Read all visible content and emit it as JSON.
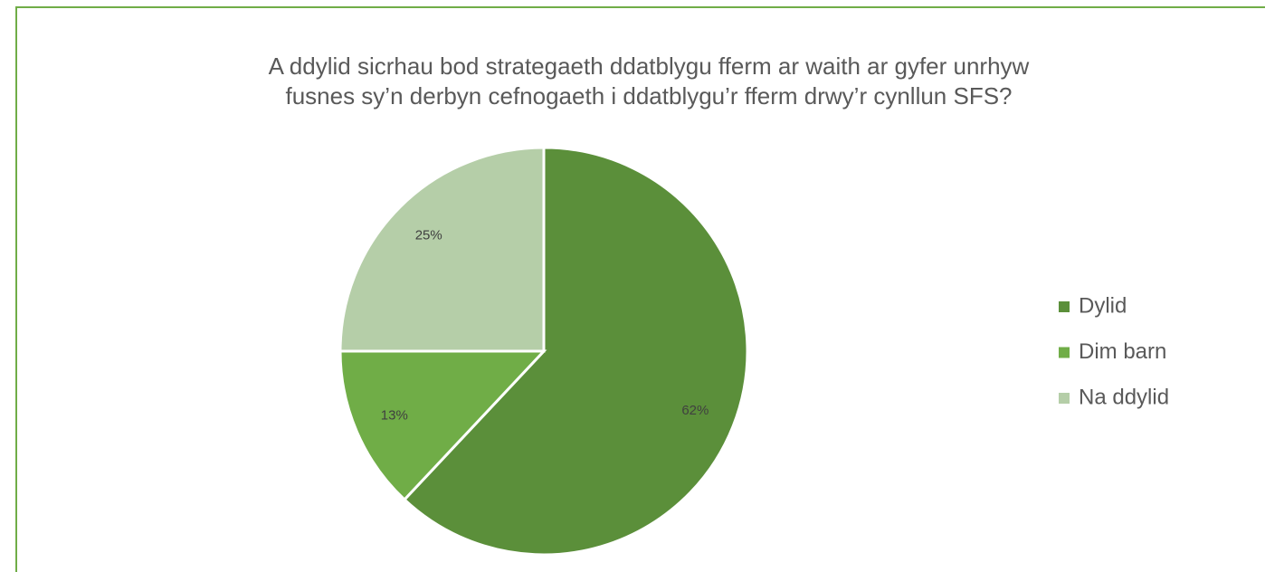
{
  "chart_data": {
    "type": "pie",
    "title": [
      "A ddylid sicrhau bod strategaeth ddatblygu fferm ar waith ar gyfer unrhyw",
      "fusnes sy’n derbyn cefnogaeth i ddatblygu’r fferm drwy’r cynllun SFS?"
    ],
    "categories": [
      "Dylid",
      "Dim barn",
      "Na ddylid"
    ],
    "values": [
      62,
      13,
      25
    ],
    "value_labels": [
      "62%",
      "13%",
      "25%"
    ],
    "colors": [
      "#5b8f3a",
      "#70ad47",
      "#b5cea8"
    ],
    "legend": "right"
  }
}
